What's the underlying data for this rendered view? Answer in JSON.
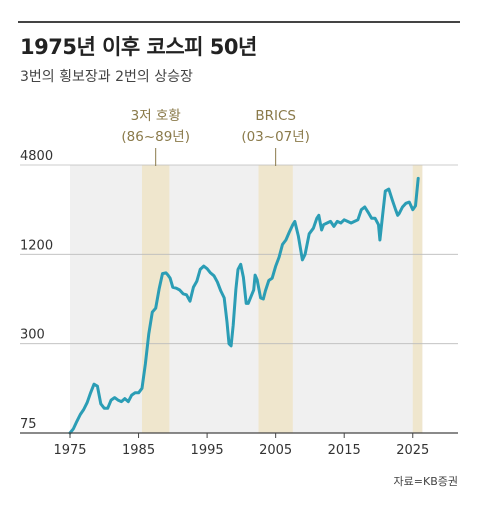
{
  "title": "1975년 이후 코스피 50년",
  "subtitle": "3번의 횡보장과 2번의 상승장",
  "source": "자료=KB증권",
  "annotations": [
    {
      "line1": "3저 호황",
      "line2": "(86~89년)"
    },
    {
      "line1": "BRICS",
      "line2": "(03~07년)"
    }
  ],
  "colors": {
    "line": "#2b9db5",
    "band": "#efe6cd",
    "plot_bg": "#f0f0f0",
    "annotation": "#8a7a4a"
  },
  "chart_data": {
    "type": "line",
    "title": "1975년 이후 코스피 50년",
    "subtitle": "3번의 횡보장과 2번의 상승장",
    "y_scale": "log",
    "ylim": [
      75,
      4800
    ],
    "xlim": [
      1975,
      2026
    ],
    "yticks": [
      75,
      300,
      1200,
      4800
    ],
    "xticks": [
      1975,
      1985,
      1995,
      2005,
      2015,
      2025
    ],
    "highlight_bands": [
      {
        "from": 1985.5,
        "to": 1989.5,
        "label": "3저 호황",
        "sublabel": "(86~89년)"
      },
      {
        "from": 2002.5,
        "to": 2007.5,
        "label": "BRICS",
        "sublabel": "(03~07년)"
      },
      {
        "from": 2025.0,
        "to": 2026.4,
        "label": "",
        "sublabel": ""
      }
    ],
    "series": [
      {
        "x": [
          1975.0,
          1975.5,
          1976.0,
          1976.5,
          1977.0,
          1977.5,
          1978.0,
          1978.5,
          1979.0,
          1979.5,
          1980.0,
          1980.5,
          1981.0,
          1981.5,
          1982.0,
          1982.5,
          1983.0,
          1983.5,
          1984.0,
          1984.5,
          1985.0,
          1985.5,
          1986.0,
          1986.5,
          1987.0,
          1987.5,
          1988.0,
          1988.5,
          1989.0,
          1989.3,
          1989.6,
          1990.0,
          1990.5,
          1991.0,
          1991.5,
          1992.0,
          1992.5,
          1993.0,
          1993.5,
          1994.0,
          1994.5,
          1995.0,
          1995.5,
          1996.0,
          1996.5,
          1997.0,
          1997.5,
          1997.9,
          1998.2,
          1998.5,
          1998.8,
          1999.2,
          1999.5,
          1999.9,
          2000.3,
          2000.7,
          2001.0,
          2001.5,
          2001.8,
          2002.0,
          2002.3,
          2002.8,
          2003.2,
          2003.5,
          2004.0,
          2004.5,
          2005.0,
          2005.5,
          2006.0,
          2006.5,
          2007.0,
          2007.5,
          2007.8,
          2008.3,
          2008.9,
          2009.3,
          2009.9,
          2010.5,
          2011.0,
          2011.3,
          2011.7,
          2012.0,
          2012.5,
          2013.0,
          2013.5,
          2014.0,
          2014.5,
          2015.0,
          2015.5,
          2016.0,
          2016.5,
          2017.0,
          2017.5,
          2018.0,
          2018.5,
          2019.0,
          2019.5,
          2020.0,
          2020.2,
          2020.6,
          2021.0,
          2021.5,
          2022.0,
          2022.5,
          2022.8,
          2023.0,
          2023.5,
          2024.0,
          2024.5,
          2025.0,
          2025.4,
          2025.8
        ],
        "y": [
          75,
          80,
          90,
          100,
          108,
          120,
          140,
          160,
          155,
          118,
          110,
          110,
          125,
          130,
          125,
          122,
          128,
          122,
          135,
          140,
          140,
          150,
          220,
          350,
          490,
          520,
          700,
          890,
          900,
          870,
          830,
          720,
          710,
          690,
          650,
          640,
          580,
          720,
          790,
          950,
          1000,
          960,
          900,
          860,
          780,
          680,
          610,
          420,
          300,
          290,
          400,
          700,
          950,
          1028,
          840,
          560,
          560,
          640,
          690,
          870,
          810,
          610,
          600,
          680,
          800,
          830,
          1000,
          1150,
          1400,
          1500,
          1700,
          1900,
          2000,
          1600,
          1100,
          1200,
          1650,
          1800,
          2100,
          2200,
          1750,
          1900,
          1950,
          2000,
          1850,
          2000,
          1950,
          2050,
          2000,
          1950,
          2000,
          2050,
          2400,
          2500,
          2300,
          2100,
          2100,
          1900,
          1500,
          2200,
          3200,
          3300,
          2800,
          2400,
          2200,
          2250,
          2500,
          2650,
          2700,
          2400,
          2550,
          3900
        ]
      }
    ]
  }
}
